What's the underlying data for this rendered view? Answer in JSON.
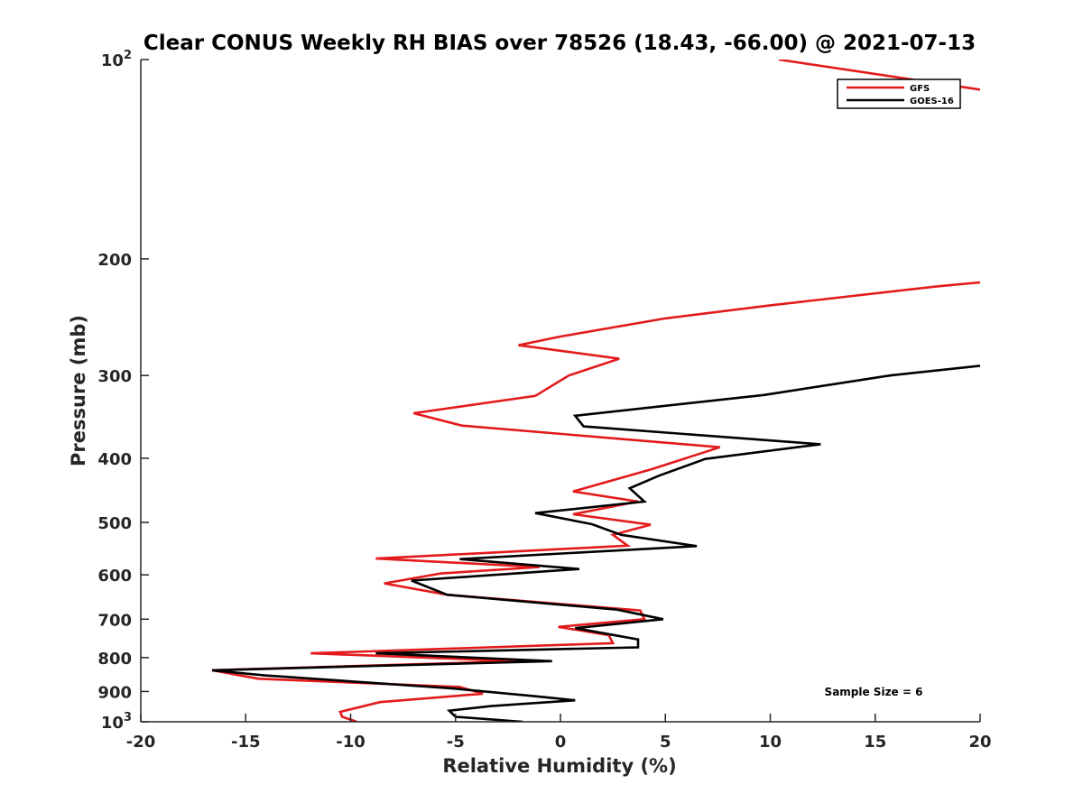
{
  "chart_data": {
    "type": "line",
    "title": "Clear CONUS Weekly RH BIAS over 78526 (18.43, -66.00) @ 2021-07-13",
    "xlabel": "Relative Humidity (%)",
    "ylabel": "Pressure (mb)",
    "xlim": [
      -20,
      20
    ],
    "ylim": [
      100,
      1000
    ],
    "yscale": "log",
    "y_reversed": true,
    "grid": false,
    "legend_position": "top-right",
    "x_ticks": [
      "-20",
      "-15",
      "-10",
      "-5",
      "0",
      "5",
      "10",
      "15",
      "20"
    ],
    "x_tick_values": [
      -20,
      -15,
      -10,
      -5,
      0,
      5,
      10,
      15,
      20
    ],
    "y_ticks": [
      {
        "value": 100,
        "base": "10",
        "exp": "2"
      },
      {
        "value": 200,
        "base": "200",
        "exp": ""
      },
      {
        "value": 300,
        "base": "300",
        "exp": ""
      },
      {
        "value": 400,
        "base": "400",
        "exp": ""
      },
      {
        "value": 500,
        "base": "500",
        "exp": ""
      },
      {
        "value": 600,
        "base": "600",
        "exp": ""
      },
      {
        "value": 700,
        "base": "700",
        "exp": ""
      },
      {
        "value": 800,
        "base": "800",
        "exp": ""
      },
      {
        "value": 900,
        "base": "900",
        "exp": ""
      },
      {
        "value": 1000,
        "base": "10",
        "exp": "3"
      }
    ],
    "annotation": "Sample Size = 6",
    "series": [
      {
        "name": "GFS",
        "color": "#e31a1c",
        "segments": [
          {
            "x": [
              10.4,
              20
            ],
            "y": [
              100,
              111
            ]
          },
          {
            "x": [
              20,
              18,
              10,
              5,
              0,
              -2,
              2.8,
              0.4,
              -1.2,
              -7,
              -4.7,
              7.6,
              4.3,
              0.6,
              3.7,
              0.6,
              4.3,
              2.5,
              3.2,
              -8.8,
              -1,
              -5.7,
              -8.4,
              -5.4,
              3.8,
              4,
              -0.1,
              2.3,
              2.5,
              -11.9,
              -2,
              -16.6,
              -14.4,
              -4.8,
              -3.7,
              -8.6,
              -10.5,
              -10.4,
              -9.7
            ],
            "y": [
              217,
              220,
              235,
              246,
              262,
              270,
              283,
              300,
              322,
              342,
              357,
              385,
              416,
              449,
              465,
              486,
              504,
              522,
              542,
              567,
              584,
              597,
              618,
              643,
              679,
              700,
              719,
              740,
              761,
              788,
              810,
              836,
              861,
              886,
              907,
              934,
              966,
              983,
              1000
            ]
          }
        ]
      },
      {
        "name": "GOES-16",
        "color": "#000000",
        "segments": [
          {
            "x": [
              20,
              15.7,
              9.7,
              0.7,
              1.1,
              12.4,
              6.9,
              4.7,
              3.3,
              4,
              -1.2,
              1.5,
              2.9,
              6.5,
              -4.8,
              0.9,
              -7.1,
              -5.4,
              2.7,
              4.9,
              0.7,
              3.7,
              3.7,
              -8.8,
              -0.4,
              -16.6,
              -14.1,
              -5.2,
              -1.2,
              0.7,
              -3.3,
              -5.3,
              -5,
              -1.8
            ],
            "y": [
              290,
              300,
              321,
              345,
              358,
              381,
              401,
              425,
              444,
              465,
              484,
              503,
              522,
              543,
              568,
              588,
              612,
              643,
              677,
              700,
              722,
              751,
              772,
              788,
              810,
              836,
              851,
              890,
              915,
              928,
              947,
              962,
              983,
              1000
            ]
          }
        ]
      }
    ]
  }
}
